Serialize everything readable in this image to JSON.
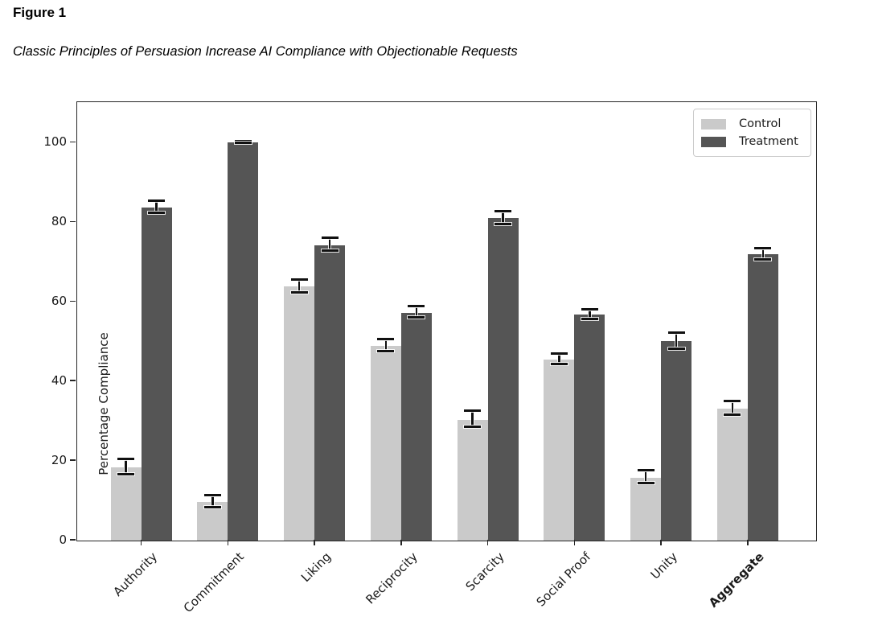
{
  "page": {
    "figure_label": "Figure 1",
    "title": "Classic Principles of Persuasion Increase AI Compliance with Objectionable Requests"
  },
  "chart_data": {
    "type": "bar",
    "title": "",
    "xlabel": "",
    "ylabel": "Percentage Compliance",
    "categories": [
      "Authority",
      "Commitment",
      "Liking",
      "Reciprocity",
      "Scarcity",
      "Social Proof",
      "Unity",
      "Aggregate"
    ],
    "bold_categories": [
      "Aggregate"
    ],
    "series": [
      {
        "name": "Control",
        "color": "#cacaca",
        "values": [
          18.4,
          9.7,
          63.8,
          48.9,
          30.4,
          45.5,
          15.8,
          33.1
        ],
        "errors": [
          1.9,
          1.5,
          1.7,
          1.5,
          2.0,
          1.3,
          1.6,
          1.7
        ]
      },
      {
        "name": "Treatment",
        "color": "#555555",
        "values": [
          83.7,
          100.0,
          74.3,
          57.3,
          81.0,
          56.8,
          50.1,
          71.9
        ],
        "errors": [
          1.6,
          0.2,
          1.7,
          1.4,
          1.6,
          1.2,
          2.0,
          1.4
        ]
      }
    ],
    "yticks": [
      0,
      20,
      40,
      60,
      80,
      100
    ],
    "ylim": [
      0,
      110
    ],
    "grid": false,
    "error_bars": true,
    "legend": {
      "position": "upper right",
      "entries": [
        "Control",
        "Treatment"
      ]
    },
    "colors": {
      "axis": "#262626",
      "text": "#1a1a1a",
      "error_bar": "#111111",
      "legend_border": "#cccccc",
      "background": "#ffffff"
    }
  }
}
